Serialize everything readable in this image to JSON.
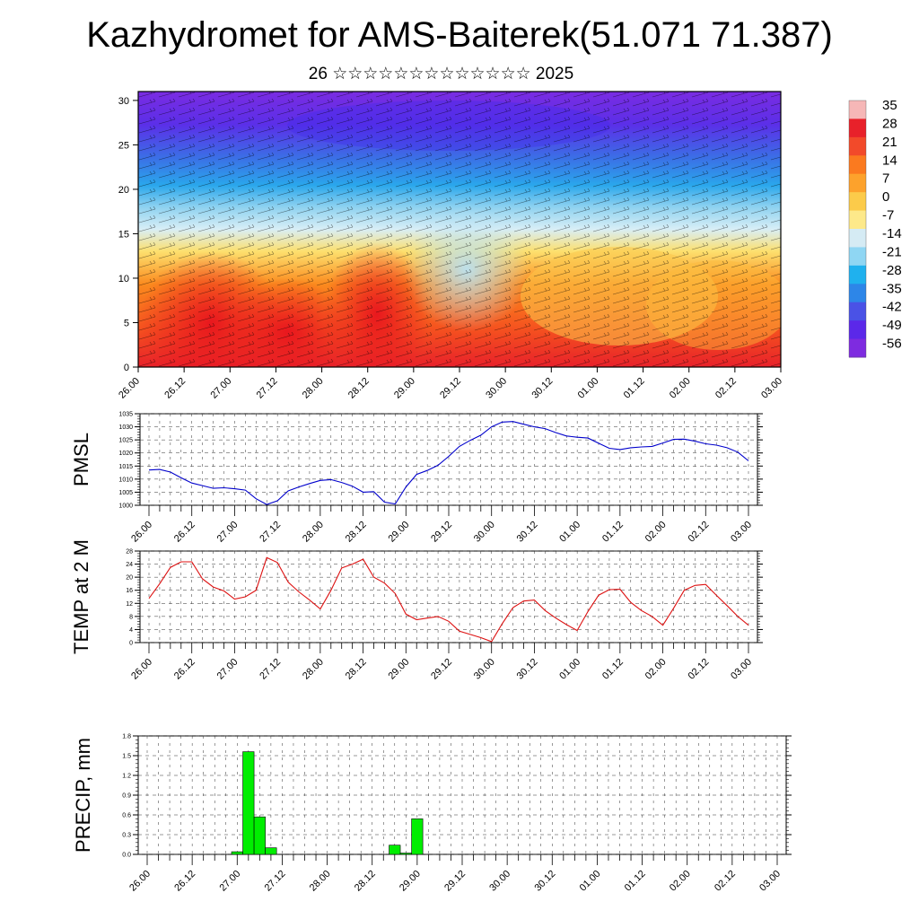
{
  "header": {
    "title": "Kazhydromet for AMS-Baiterek(51.071 71.387)",
    "subtitle": "26 ☆☆☆☆☆☆☆☆☆☆☆☆☆ 2025"
  },
  "chart_data": [
    {
      "type": "heatmap",
      "x_ticks": [
        "26.00",
        "26.12",
        "27.00",
        "27.12",
        "28.00",
        "28.12",
        "29.00",
        "29.12",
        "30.00",
        "30.12",
        "01.00",
        "01.12",
        "02.00",
        "02.12",
        "03.00"
      ],
      "y_ticks": [
        0,
        5,
        10,
        15,
        20,
        25,
        30
      ],
      "ylim": [
        0,
        31
      ],
      "colorbar": {
        "labels": [
          "35",
          "28",
          "21",
          "14",
          "7",
          "0",
          "-7",
          "-14",
          "-21",
          "-28",
          "-35",
          "-42",
          "-49",
          "-56"
        ],
        "colors": [
          "#f6b7b7",
          "#e8212a",
          "#f24a2a",
          "#fb7a1f",
          "#fda22c",
          "#fccb4a",
          "#fde98a",
          "#d5ebf4",
          "#8fd6f3",
          "#1fb1ee",
          "#2d86e8",
          "#4a52e6",
          "#5b28e9",
          "#7e2be0"
        ]
      },
      "field_description": "temperature cross-section with wind barbs"
    },
    {
      "type": "line",
      "ylabel": "PMSL",
      "color": "#0000cc",
      "ylim": [
        1000,
        1035
      ],
      "y_ticks": [
        1000,
        1005,
        1010,
        1015,
        1020,
        1025,
        1030,
        1035
      ],
      "x_ticks": [
        "26.00",
        "26.12",
        "27.00",
        "27.12",
        "28.00",
        "28.12",
        "29.00",
        "29.12",
        "30.00",
        "30.12",
        "01.00",
        "01.12",
        "02.00",
        "02.12",
        "03.00"
      ],
      "x": [
        0,
        1,
        2,
        3,
        4,
        5,
        6,
        7,
        8,
        9,
        10,
        11,
        12,
        13,
        14,
        15,
        16,
        17,
        18,
        19,
        20,
        21,
        22,
        23,
        24,
        25,
        26,
        27,
        28,
        29,
        30,
        31,
        32,
        33,
        34,
        35,
        36,
        37,
        38,
        39,
        40,
        41,
        42,
        43,
        44,
        45,
        46,
        47,
        48,
        49,
        50,
        51,
        52,
        53,
        54,
        55,
        56
      ],
      "values": [
        1013.5,
        1013.7,
        1012.7,
        1010.5,
        1008.5,
        1007.5,
        1006.5,
        1006.7,
        1006.3,
        1005.8,
        1002.5,
        1000.3,
        1001.7,
        1005.5,
        1007.0,
        1008.3,
        1009.5,
        1009.8,
        1008.7,
        1007.3,
        1005.0,
        1005.2,
        1001.2,
        1000.5,
        1007.0,
        1011.8,
        1013.3,
        1015.3,
        1018.7,
        1022.5,
        1024.8,
        1026.8,
        1030.0,
        1031.8,
        1032.0,
        1031.0,
        1030.0,
        1029.3,
        1027.8,
        1026.5,
        1026.0,
        1025.7,
        1023.7,
        1021.8,
        1021.3,
        1022.0,
        1022.3,
        1022.5,
        1023.8,
        1025.2,
        1025.3,
        1024.5,
        1023.5,
        1023.0,
        1022.0,
        1020.3,
        1017.0
      ]
    },
    {
      "type": "line",
      "ylabel": "TEMP at 2 M",
      "color": "#dd1111",
      "ylim": [
        0,
        28
      ],
      "y_ticks": [
        0,
        4,
        8,
        12,
        16,
        20,
        24,
        28
      ],
      "x_ticks": [
        "26.00",
        "26.12",
        "27.00",
        "27.12",
        "28.00",
        "28.12",
        "29.00",
        "29.12",
        "30.00",
        "30.12",
        "01.00",
        "01.12",
        "02.00",
        "02.12",
        "03.00"
      ],
      "x": [
        0,
        1,
        2,
        3,
        4,
        5,
        6,
        7,
        8,
        9,
        10,
        11,
        12,
        13,
        14,
        15,
        16,
        17,
        18,
        19,
        20,
        21,
        22,
        23,
        24,
        25,
        26,
        27,
        28,
        29,
        30,
        31,
        32,
        33,
        34,
        35,
        36,
        37,
        38,
        39,
        40,
        41,
        42,
        43,
        44,
        45,
        46,
        47,
        48,
        49,
        50,
        51,
        52,
        53,
        54,
        55,
        56
      ],
      "values": [
        13.5,
        18.0,
        23.0,
        24.7,
        24.7,
        19.5,
        17.0,
        15.8,
        13.3,
        14.0,
        16.0,
        26.0,
        24.5,
        18.5,
        15.5,
        13.0,
        10.3,
        16.0,
        22.8,
        24.0,
        25.5,
        20.0,
        18.2,
        15.0,
        8.7,
        7.0,
        7.5,
        8.0,
        6.5,
        3.5,
        2.5,
        1.5,
        0.3,
        5.8,
        10.7,
        12.7,
        13.0,
        9.8,
        7.5,
        5.5,
        3.7,
        9.5,
        14.5,
        16.2,
        16.3,
        12.3,
        9.8,
        8.0,
        5.3,
        10.5,
        16.0,
        17.5,
        17.8,
        14.5,
        11.3,
        8.0,
        5.3
      ]
    },
    {
      "type": "bar",
      "ylabel": "PRECIP, mm",
      "color": "#00ee00",
      "ylim": [
        0,
        1.8
      ],
      "y_ticks": [
        "0.0",
        "0.3",
        "0.6",
        "0.9",
        "1.2",
        "1.5",
        "1.8"
      ],
      "x_ticks": [
        "26.00",
        "26.12",
        "27.00",
        "27.12",
        "28.00",
        "28.12",
        "29.00",
        "29.12",
        "30.00",
        "30.12",
        "01.00",
        "01.12",
        "02.00",
        "02.12",
        "03.00"
      ],
      "bars": [
        {
          "x": 8,
          "value": 0.04
        },
        {
          "x": 9,
          "value": 1.56
        },
        {
          "x": 10,
          "value": 0.57
        },
        {
          "x": 11,
          "value": 0.1
        },
        {
          "x": 22,
          "value": 0.14
        },
        {
          "x": 23,
          "value": 0.02
        },
        {
          "x": 24,
          "value": 0.54
        }
      ]
    }
  ]
}
